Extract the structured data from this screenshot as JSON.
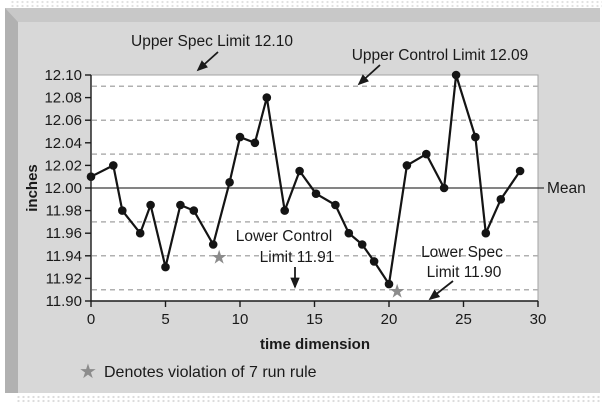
{
  "figure": {
    "annotations": {
      "upper_spec": "Upper Spec Limit 12.10",
      "upper_control": "Upper Control Limit 12.09",
      "lower_control_line1": "Lower Control",
      "lower_control_line2": "Limit 11.91",
      "lower_spec_line1": "Lower Spec",
      "lower_spec_line2": "Limit 11.90",
      "mean": "Mean"
    },
    "legend": {
      "star_glyph": "★",
      "label": "Denotes violation of 7 run rule"
    }
  },
  "chart_data": {
    "type": "line",
    "title": "",
    "xlabel": "time dimension",
    "ylabel": "inches",
    "xlim": [
      0,
      30
    ],
    "ylim": [
      11.9,
      12.1
    ],
    "x_ticks": [
      0,
      5,
      10,
      15,
      20,
      25,
      30
    ],
    "y_tick_labels": [
      "12.10",
      "12.08",
      "12.06",
      "12.04",
      "12.02",
      "12.00",
      "11.98",
      "11.96",
      "11.94",
      "11.92",
      "11.90"
    ],
    "mean": 12.0,
    "upper_control_limit": 12.09,
    "lower_control_limit": 11.91,
    "upper_spec_limit": 12.1,
    "lower_spec_limit": 11.9,
    "sigma_gridlines": [
      12.09,
      12.06,
      12.03,
      11.97,
      11.94,
      11.91
    ],
    "grid": "dashed horizontal sigma lines",
    "legend_position": "bottom-left",
    "points": [
      [
        0.0,
        12.01
      ],
      [
        1.5,
        12.02
      ],
      [
        2.1,
        11.98
      ],
      [
        3.3,
        11.96
      ],
      [
        4.0,
        11.985
      ],
      [
        5.0,
        11.93
      ],
      [
        6.0,
        11.985
      ],
      [
        6.9,
        11.98
      ],
      [
        8.2,
        11.95
      ],
      [
        9.3,
        12.005
      ],
      [
        10.0,
        12.045
      ],
      [
        11.0,
        12.04
      ],
      [
        11.8,
        12.08
      ],
      [
        13.0,
        11.98
      ],
      [
        14.0,
        12.015
      ],
      [
        15.1,
        11.995
      ],
      [
        16.4,
        11.985
      ],
      [
        17.3,
        11.96
      ],
      [
        18.2,
        11.95
      ],
      [
        19.0,
        11.935
      ],
      [
        20.0,
        11.915
      ],
      [
        21.2,
        12.02
      ],
      [
        22.5,
        12.03
      ],
      [
        23.7,
        12.0
      ],
      [
        24.5,
        12.1
      ],
      [
        25.8,
        12.045
      ],
      [
        26.5,
        11.96
      ],
      [
        27.5,
        11.99
      ],
      [
        28.8,
        12.015
      ]
    ],
    "violation_stars": [
      {
        "x": 8.6,
        "y": 11.939
      },
      {
        "x": 20.55,
        "y": 11.909
      }
    ],
    "colors": {
      "series": "#141414",
      "marker": "#141414",
      "violation_star": "#8c8c8c",
      "gridline": "#b0b0b0",
      "mean_line": "#3a3a3a",
      "frame_gray": "#d8d8d8"
    }
  }
}
